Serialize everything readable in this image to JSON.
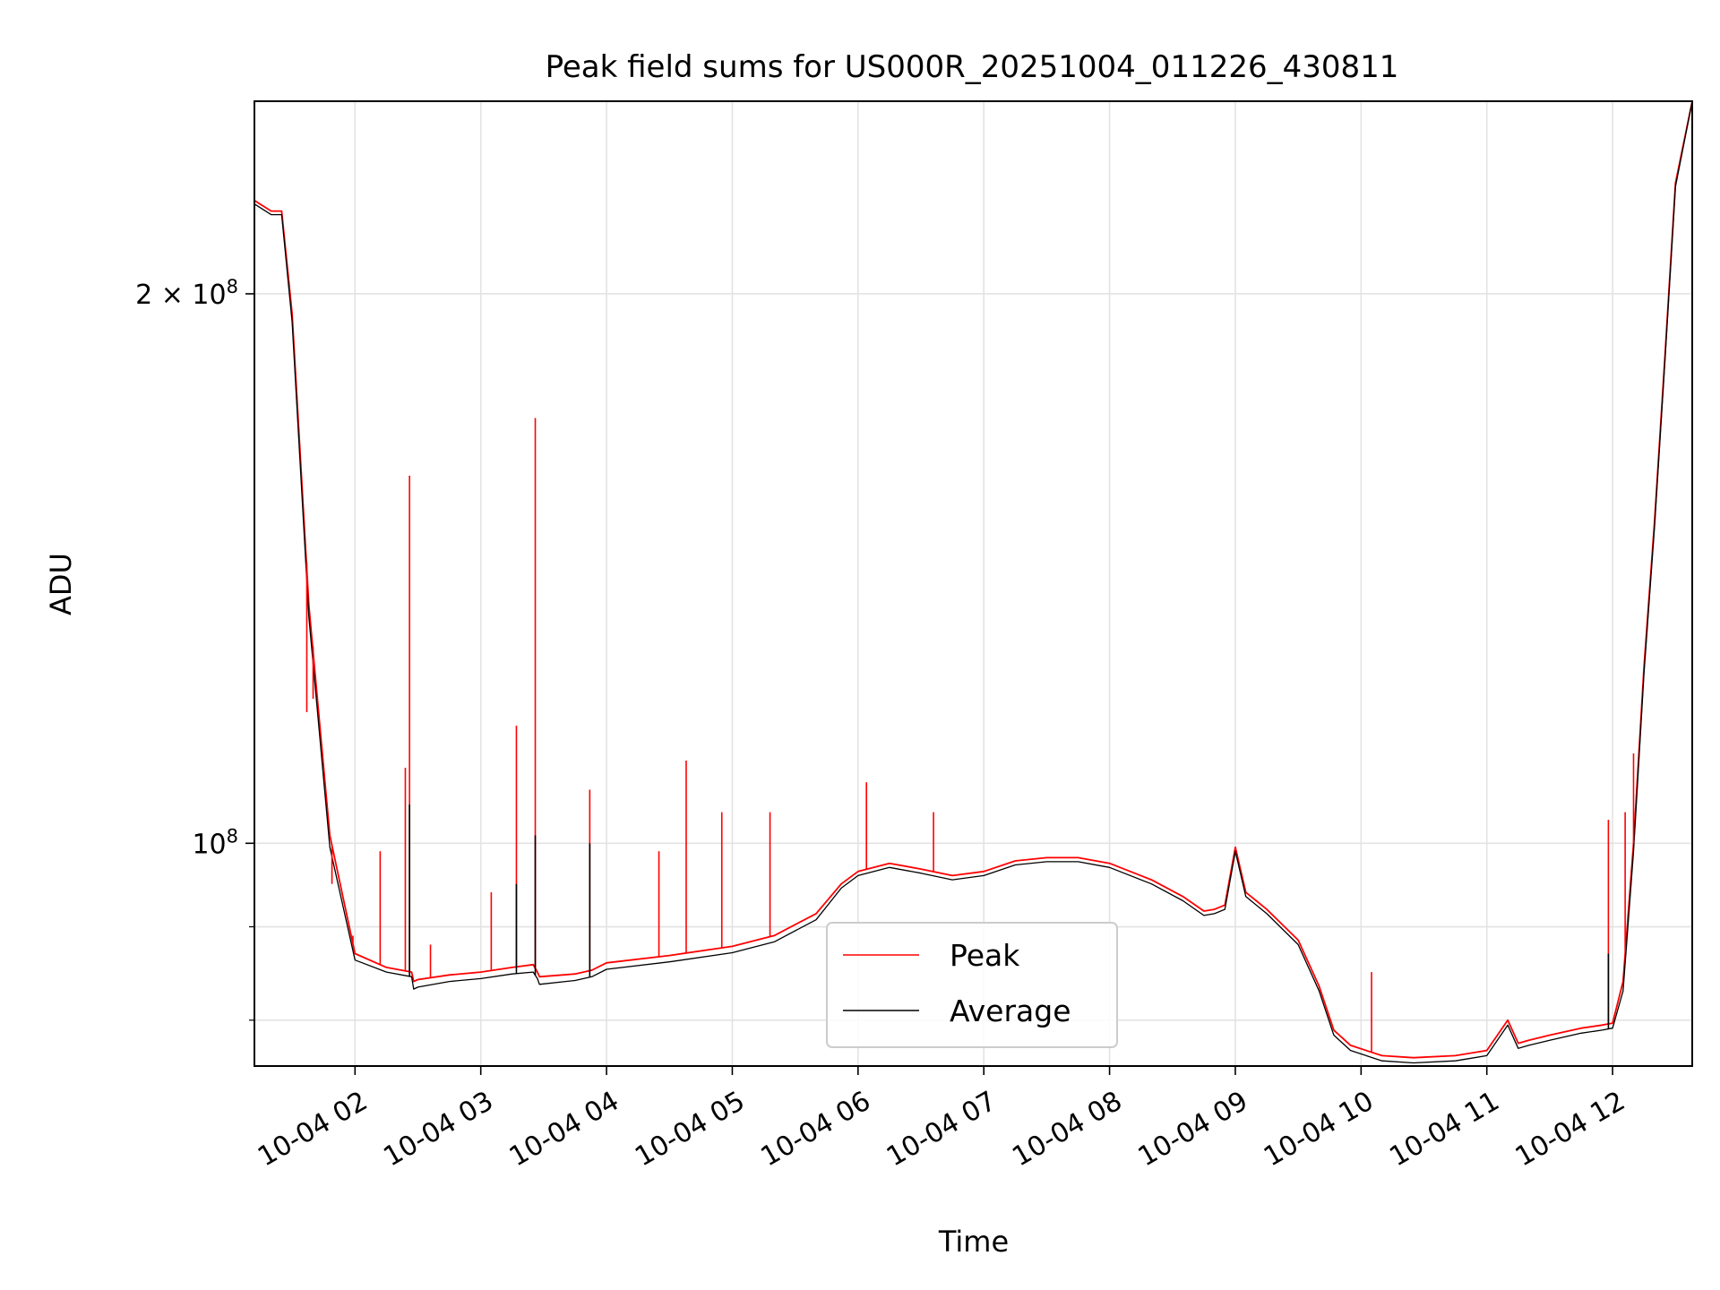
{
  "chart_data": {
    "type": "line",
    "title": "Peak field sums for US000R_20251004_011226_430811",
    "xlabel": "Time",
    "ylabel": "ADU",
    "x_unit": "datetime",
    "xlim": [
      "2025-10-04 01:12",
      "2025-10-04 12:38"
    ],
    "ylim": [
      75500000,
      255000000
    ],
    "y_scale": "log",
    "grid": true,
    "legend_position": "lower center",
    "x_tick_labels": [
      "10-04 02",
      "10-04 03",
      "10-04 04",
      "10-04 05",
      "10-04 06",
      "10-04 07",
      "10-04 08",
      "10-04 09",
      "10-04 10",
      "10-04 11",
      "10-04 12"
    ],
    "x_ticks": [
      "2025-10-04 02:00",
      "2025-10-04 03:00",
      "2025-10-04 04:00",
      "2025-10-04 05:00",
      "2025-10-04 06:00",
      "2025-10-04 07:00",
      "2025-10-04 08:00",
      "2025-10-04 09:00",
      "2025-10-04 10:00",
      "2025-10-04 11:00",
      "2025-10-04 12:00"
    ],
    "y_major_ticks": [
      {
        "value": 200000000,
        "mantissa": "2",
        "sep": " × ",
        "base": "10",
        "exp": "8"
      },
      {
        "value": 100000000,
        "mantissa": "",
        "sep": "",
        "base": "10",
        "exp": "8"
      }
    ],
    "y_minor_ticks": [
      90000000,
      80000000
    ],
    "series": [
      {
        "name": "Peak",
        "color": "#ff0000",
        "x": [
          "2025-10-04 01:12",
          "2025-10-04 01:20",
          "2025-10-04 01:25",
          "2025-10-04 01:30",
          "2025-10-04 01:38",
          "2025-10-04 01:48",
          "2025-10-04 02:00",
          "2025-10-04 02:15",
          "2025-10-04 02:27",
          "2025-10-04 02:28",
          "2025-10-04 02:30",
          "2025-10-04 02:45",
          "2025-10-04 03:00",
          "2025-10-04 03:15",
          "2025-10-04 03:25",
          "2025-10-04 03:27",
          "2025-10-04 03:28",
          "2025-10-04 03:45",
          "2025-10-04 03:53",
          "2025-10-04 04:00",
          "2025-10-04 04:30",
          "2025-10-04 05:00",
          "2025-10-04 05:20",
          "2025-10-04 05:40",
          "2025-10-04 05:52",
          "2025-10-04 06:00",
          "2025-10-04 06:15",
          "2025-10-04 06:30",
          "2025-10-04 06:45",
          "2025-10-04 07:00",
          "2025-10-04 07:15",
          "2025-10-04 07:30",
          "2025-10-04 07:45",
          "2025-10-04 08:00",
          "2025-10-04 08:20",
          "2025-10-04 08:35",
          "2025-10-04 08:45",
          "2025-10-04 08:50",
          "2025-10-04 08:55",
          "2025-10-04 09:00",
          "2025-10-04 09:05",
          "2025-10-04 09:15",
          "2025-10-04 09:30",
          "2025-10-04 09:40",
          "2025-10-04 09:47",
          "2025-10-04 09:55",
          "2025-10-04 10:10",
          "2025-10-04 10:25",
          "2025-10-04 10:45",
          "2025-10-04 11:00",
          "2025-10-04 11:10",
          "2025-10-04 11:15",
          "2025-10-04 11:20",
          "2025-10-04 11:30",
          "2025-10-04 11:45",
          "2025-10-04 11:55",
          "2025-10-04 12:00",
          "2025-10-04 12:05",
          "2025-10-04 12:10",
          "2025-10-04 12:15",
          "2025-10-04 12:20",
          "2025-10-04 12:25",
          "2025-10-04 12:30",
          "2025-10-04 12:38"
        ],
        "y": [
          225000000,
          222000000,
          222000000,
          195000000,
          135000000,
          101000000,
          87000000,
          85500000,
          85000000,
          84000000,
          84200000,
          84700000,
          85000000,
          85500000,
          85800000,
          85000000,
          84500000,
          84800000,
          85200000,
          86000000,
          86800000,
          87800000,
          89000000,
          91500000,
          95000000,
          96500000,
          97500000,
          96800000,
          96000000,
          96500000,
          97800000,
          98200000,
          98200000,
          97500000,
          95500000,
          93500000,
          91800000,
          92000000,
          92500000,
          99500000,
          94000000,
          92000000,
          88500000,
          83500000,
          79000000,
          77500000,
          76500000,
          76300000,
          76500000,
          77000000,
          80000000,
          77700000,
          78000000,
          78500000,
          79200000,
          79500000,
          79700000,
          84000000,
          100000000,
          125000000,
          150000000,
          185000000,
          230000000,
          255000000
        ]
      },
      {
        "name": "Average",
        "color": "#000000",
        "x": [
          "2025-10-04 01:12",
          "2025-10-04 01:20",
          "2025-10-04 01:25",
          "2025-10-04 01:30",
          "2025-10-04 01:38",
          "2025-10-04 01:48",
          "2025-10-04 02:00",
          "2025-10-04 02:15",
          "2025-10-04 02:27",
          "2025-10-04 02:28",
          "2025-10-04 02:30",
          "2025-10-04 02:45",
          "2025-10-04 03:00",
          "2025-10-04 03:15",
          "2025-10-04 03:25",
          "2025-10-04 03:27",
          "2025-10-04 03:28",
          "2025-10-04 03:45",
          "2025-10-04 03:53",
          "2025-10-04 04:00",
          "2025-10-04 04:30",
          "2025-10-04 05:00",
          "2025-10-04 05:20",
          "2025-10-04 05:40",
          "2025-10-04 05:52",
          "2025-10-04 06:00",
          "2025-10-04 06:15",
          "2025-10-04 06:30",
          "2025-10-04 06:45",
          "2025-10-04 07:00",
          "2025-10-04 07:15",
          "2025-10-04 07:30",
          "2025-10-04 07:45",
          "2025-10-04 08:00",
          "2025-10-04 08:20",
          "2025-10-04 08:35",
          "2025-10-04 08:45",
          "2025-10-04 08:50",
          "2025-10-04 08:55",
          "2025-10-04 09:00",
          "2025-10-04 09:05",
          "2025-10-04 09:15",
          "2025-10-04 09:30",
          "2025-10-04 09:40",
          "2025-10-04 09:47",
          "2025-10-04 09:55",
          "2025-10-04 10:10",
          "2025-10-04 10:25",
          "2025-10-04 10:45",
          "2025-10-04 11:00",
          "2025-10-04 11:10",
          "2025-10-04 11:15",
          "2025-10-04 11:20",
          "2025-10-04 11:30",
          "2025-10-04 11:45",
          "2025-10-04 11:55",
          "2025-10-04 12:00",
          "2025-10-04 12:05",
          "2025-10-04 12:10",
          "2025-10-04 12:15",
          "2025-10-04 12:20",
          "2025-10-04 12:25",
          "2025-10-04 12:30",
          "2025-10-04 12:38"
        ],
        "y": [
          224000000,
          221000000,
          221000000,
          193000000,
          133000000,
          99500000,
          86300000,
          85000000,
          84500000,
          83200000,
          83400000,
          84000000,
          84300000,
          84800000,
          85000000,
          84300000,
          83700000,
          84100000,
          84500000,
          85300000,
          86100000,
          87100000,
          88300000,
          90800000,
          94500000,
          96000000,
          97000000,
          96300000,
          95500000,
          96000000,
          97300000,
          97700000,
          97700000,
          97000000,
          95000000,
          93000000,
          91300000,
          91500000,
          92000000,
          99000000,
          93500000,
          91500000,
          88000000,
          83000000,
          78500000,
          77000000,
          76000000,
          75800000,
          76000000,
          76500000,
          79500000,
          77200000,
          77500000,
          78000000,
          78700000,
          79000000,
          79200000,
          83000000,
          99000000,
          124000000,
          149000000,
          184000000,
          229000000,
          255000000
        ]
      }
    ],
    "spikes": [
      {
        "series": "Peak",
        "x": "2025-10-04 01:37",
        "y": 118000000
      },
      {
        "series": "Peak",
        "x": "2025-10-04 01:40",
        "y": 120000000
      },
      {
        "series": "Peak",
        "x": "2025-10-04 01:49",
        "y": 95000000
      },
      {
        "series": "Peak",
        "x": "2025-10-04 01:59",
        "y": 89000000
      },
      {
        "series": "Peak",
        "x": "2025-10-04 02:12",
        "y": 99000000
      },
      {
        "series": "Peak",
        "x": "2025-10-04 02:24",
        "y": 110000000
      },
      {
        "series": "Peak",
        "x": "2025-10-04 02:26",
        "y": 159000000
      },
      {
        "series": "Average",
        "x": "2025-10-04 02:26",
        "y": 105000000
      },
      {
        "series": "Peak",
        "x": "2025-10-04 02:36",
        "y": 88000000
      },
      {
        "series": "Peak",
        "x": "2025-10-04 03:05",
        "y": 94000000
      },
      {
        "series": "Peak",
        "x": "2025-10-04 03:17",
        "y": 116000000
      },
      {
        "series": "Average",
        "x": "2025-10-04 03:17",
        "y": 95000000
      },
      {
        "series": "Peak",
        "x": "2025-10-04 03:26",
        "y": 171000000
      },
      {
        "series": "Average",
        "x": "2025-10-04 03:26",
        "y": 101000000
      },
      {
        "series": "Peak",
        "x": "2025-10-04 03:52",
        "y": 107000000
      },
      {
        "series": "Average",
        "x": "2025-10-04 03:52",
        "y": 100000000
      },
      {
        "series": "Peak",
        "x": "2025-10-04 04:25",
        "y": 99000000
      },
      {
        "series": "Peak",
        "x": "2025-10-04 04:38",
        "y": 111000000
      },
      {
        "series": "Peak",
        "x": "2025-10-04 04:55",
        "y": 104000000
      },
      {
        "series": "Peak",
        "x": "2025-10-04 05:18",
        "y": 104000000
      },
      {
        "series": "Peak",
        "x": "2025-10-04 06:04",
        "y": 108000000
      },
      {
        "series": "Peak",
        "x": "2025-10-04 06:36",
        "y": 104000000
      },
      {
        "series": "Peak",
        "x": "2025-10-04 10:05",
        "y": 85000000
      },
      {
        "series": "Peak",
        "x": "2025-10-04 11:58",
        "y": 103000000
      },
      {
        "series": "Average",
        "x": "2025-10-04 11:58",
        "y": 87000000
      },
      {
        "series": "Peak",
        "x": "2025-10-04 12:06",
        "y": 104000000
      },
      {
        "series": "Peak",
        "x": "2025-10-04 12:10",
        "y": 112000000
      }
    ]
  }
}
